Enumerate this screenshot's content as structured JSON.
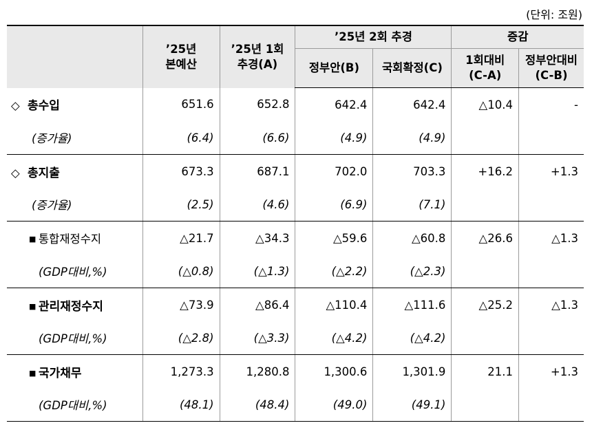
{
  "unit_note": "(단위: 조원)",
  "header": {
    "col1_line1": "’25년",
    "col1_line2": "본예산",
    "col2_line1": "’25년 1회",
    "col2_line2": "추경(A)",
    "group_2nd": "’25년 2회 추경",
    "col3": "정부안(B)",
    "col4": "국회확정(C)",
    "group_change": "증감",
    "col5_line1": "1회대비",
    "col5_line2": "(C-A)",
    "col6_line1": "정부안대비",
    "col6_line2": "(C-B)"
  },
  "rows": [
    {
      "symbol": "◇",
      "label": "총수입",
      "values": [
        "651.6",
        "652.8",
        "642.4",
        "642.4",
        "△10.4",
        "-"
      ]
    },
    {
      "label": "(증가율)",
      "values": [
        "(6.4)",
        "(6.6)",
        "(4.9)",
        "(4.9)",
        "",
        ""
      ]
    },
    {
      "symbol": "◇",
      "label": "총지출",
      "values": [
        "673.3",
        "687.1",
        "702.0",
        "703.3",
        "+16.2",
        "+1.3"
      ]
    },
    {
      "label": "(증가율)",
      "values": [
        "(2.5)",
        "(4.6)",
        "(6.9)",
        "(7.1)",
        "",
        ""
      ]
    },
    {
      "symbol": "■",
      "label": "통합재정수지",
      "values": [
        "△21.7",
        "△34.3",
        "△59.6",
        "△60.8",
        "△26.6",
        "△1.3"
      ]
    },
    {
      "label": "(GDP대비,%)",
      "values": [
        "(△0.8)",
        "(△1.3)",
        "(△2.2)",
        "(△2.3)",
        "",
        ""
      ]
    },
    {
      "symbol": "■",
      "label": "관리재정수지",
      "values": [
        "△73.9",
        "△86.4",
        "△110.4",
        "△111.6",
        "△25.2",
        "△1.3"
      ]
    },
    {
      "label": "(GDP대비,%)",
      "values": [
        "(△2.8)",
        "(△3.3)",
        "(△4.2)",
        "(△4.2)",
        "",
        ""
      ]
    },
    {
      "symbol": "■",
      "label": "국가채무",
      "values": [
        "1,273.3",
        "1,280.8",
        "1,300.6",
        "1,301.9",
        "21.1",
        "+1.3"
      ]
    },
    {
      "label": "(GDP대비,%)",
      "values": [
        "(48.1)",
        "(48.4)",
        "(49.0)",
        "(49.1)",
        "",
        ""
      ]
    }
  ]
}
